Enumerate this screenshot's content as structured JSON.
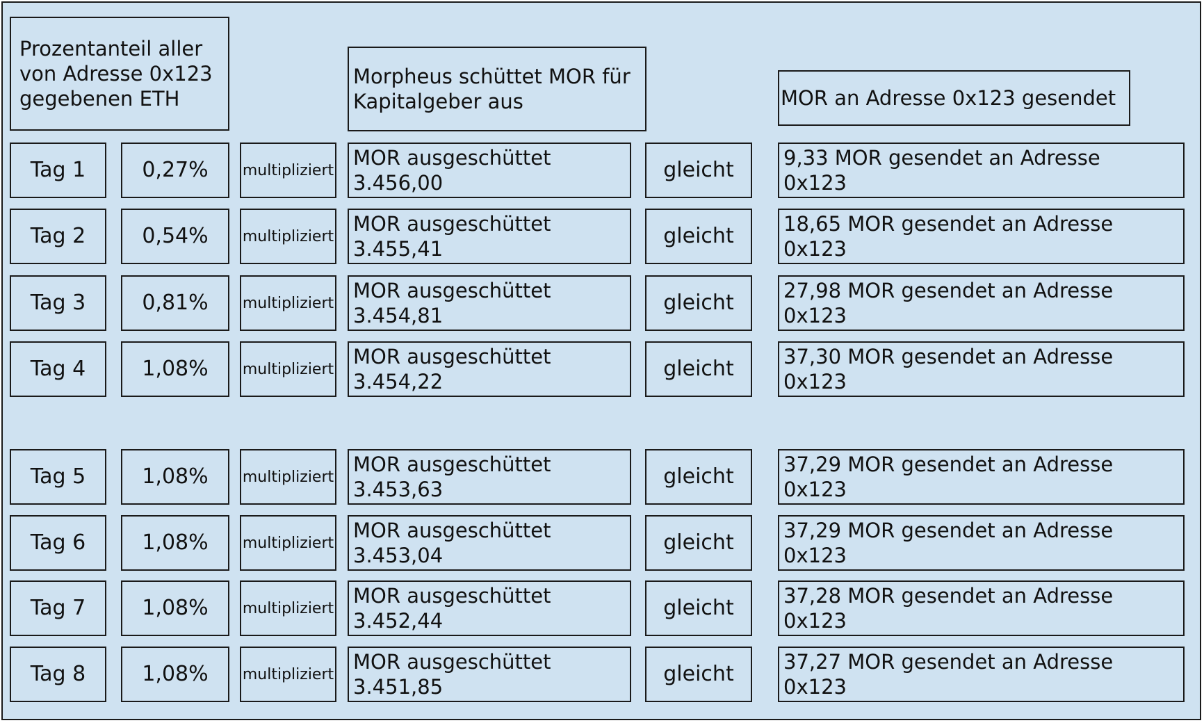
{
  "header": {
    "share_label": "Prozentanteil aller\nvon Adresse 0x123\ngegebenen ETH",
    "payout_label": "Morpheus schüttet MOR für\nKapitalgeber aus",
    "sent_label": "MOR an Adresse 0x123 gesendet"
  },
  "ops": {
    "multiply": "multipliziert",
    "equals": "gleicht"
  },
  "rows": [
    {
      "day": "Tag 1",
      "percent": "0,27%",
      "distributed": "MOR ausgeschüttet\n3.456,00",
      "sent": "9,33 MOR gesendet an Adresse\n0x123"
    },
    {
      "day": "Tag 2",
      "percent": "0,54%",
      "distributed": "MOR ausgeschüttet\n3.455,41",
      "sent": "18,65 MOR gesendet an Adresse\n0x123"
    },
    {
      "day": "Tag 3",
      "percent": "0,81%",
      "distributed": "MOR ausgeschüttet\n3.454,81",
      "sent": "27,98 MOR gesendet an Adresse\n0x123"
    },
    {
      "day": "Tag 4",
      "percent": "1,08%",
      "distributed": "MOR ausgeschüttet\n3.454,22",
      "sent": "37,30 MOR gesendet an Adresse\n0x123"
    },
    {
      "day": "Tag 5",
      "percent": "1,08%",
      "distributed": "MOR ausgeschüttet\n3.453,63",
      "sent": "37,29 MOR gesendet an Adresse\n0x123"
    },
    {
      "day": "Tag 6",
      "percent": "1,08%",
      "distributed": "MOR ausgeschüttet\n3.453,04",
      "sent": "37,29 MOR gesendet an Adresse\n0x123"
    },
    {
      "day": "Tag 7",
      "percent": "1,08%",
      "distributed": "MOR ausgeschüttet\n3.452,44",
      "sent": "37,28 MOR gesendet an Adresse\n0x123"
    },
    {
      "day": "Tag 8",
      "percent": "1,08%",
      "distributed": "MOR ausgeschüttet\n3.451,85",
      "sent": "37,27 MOR gesendet an Adresse\n0x123"
    }
  ]
}
